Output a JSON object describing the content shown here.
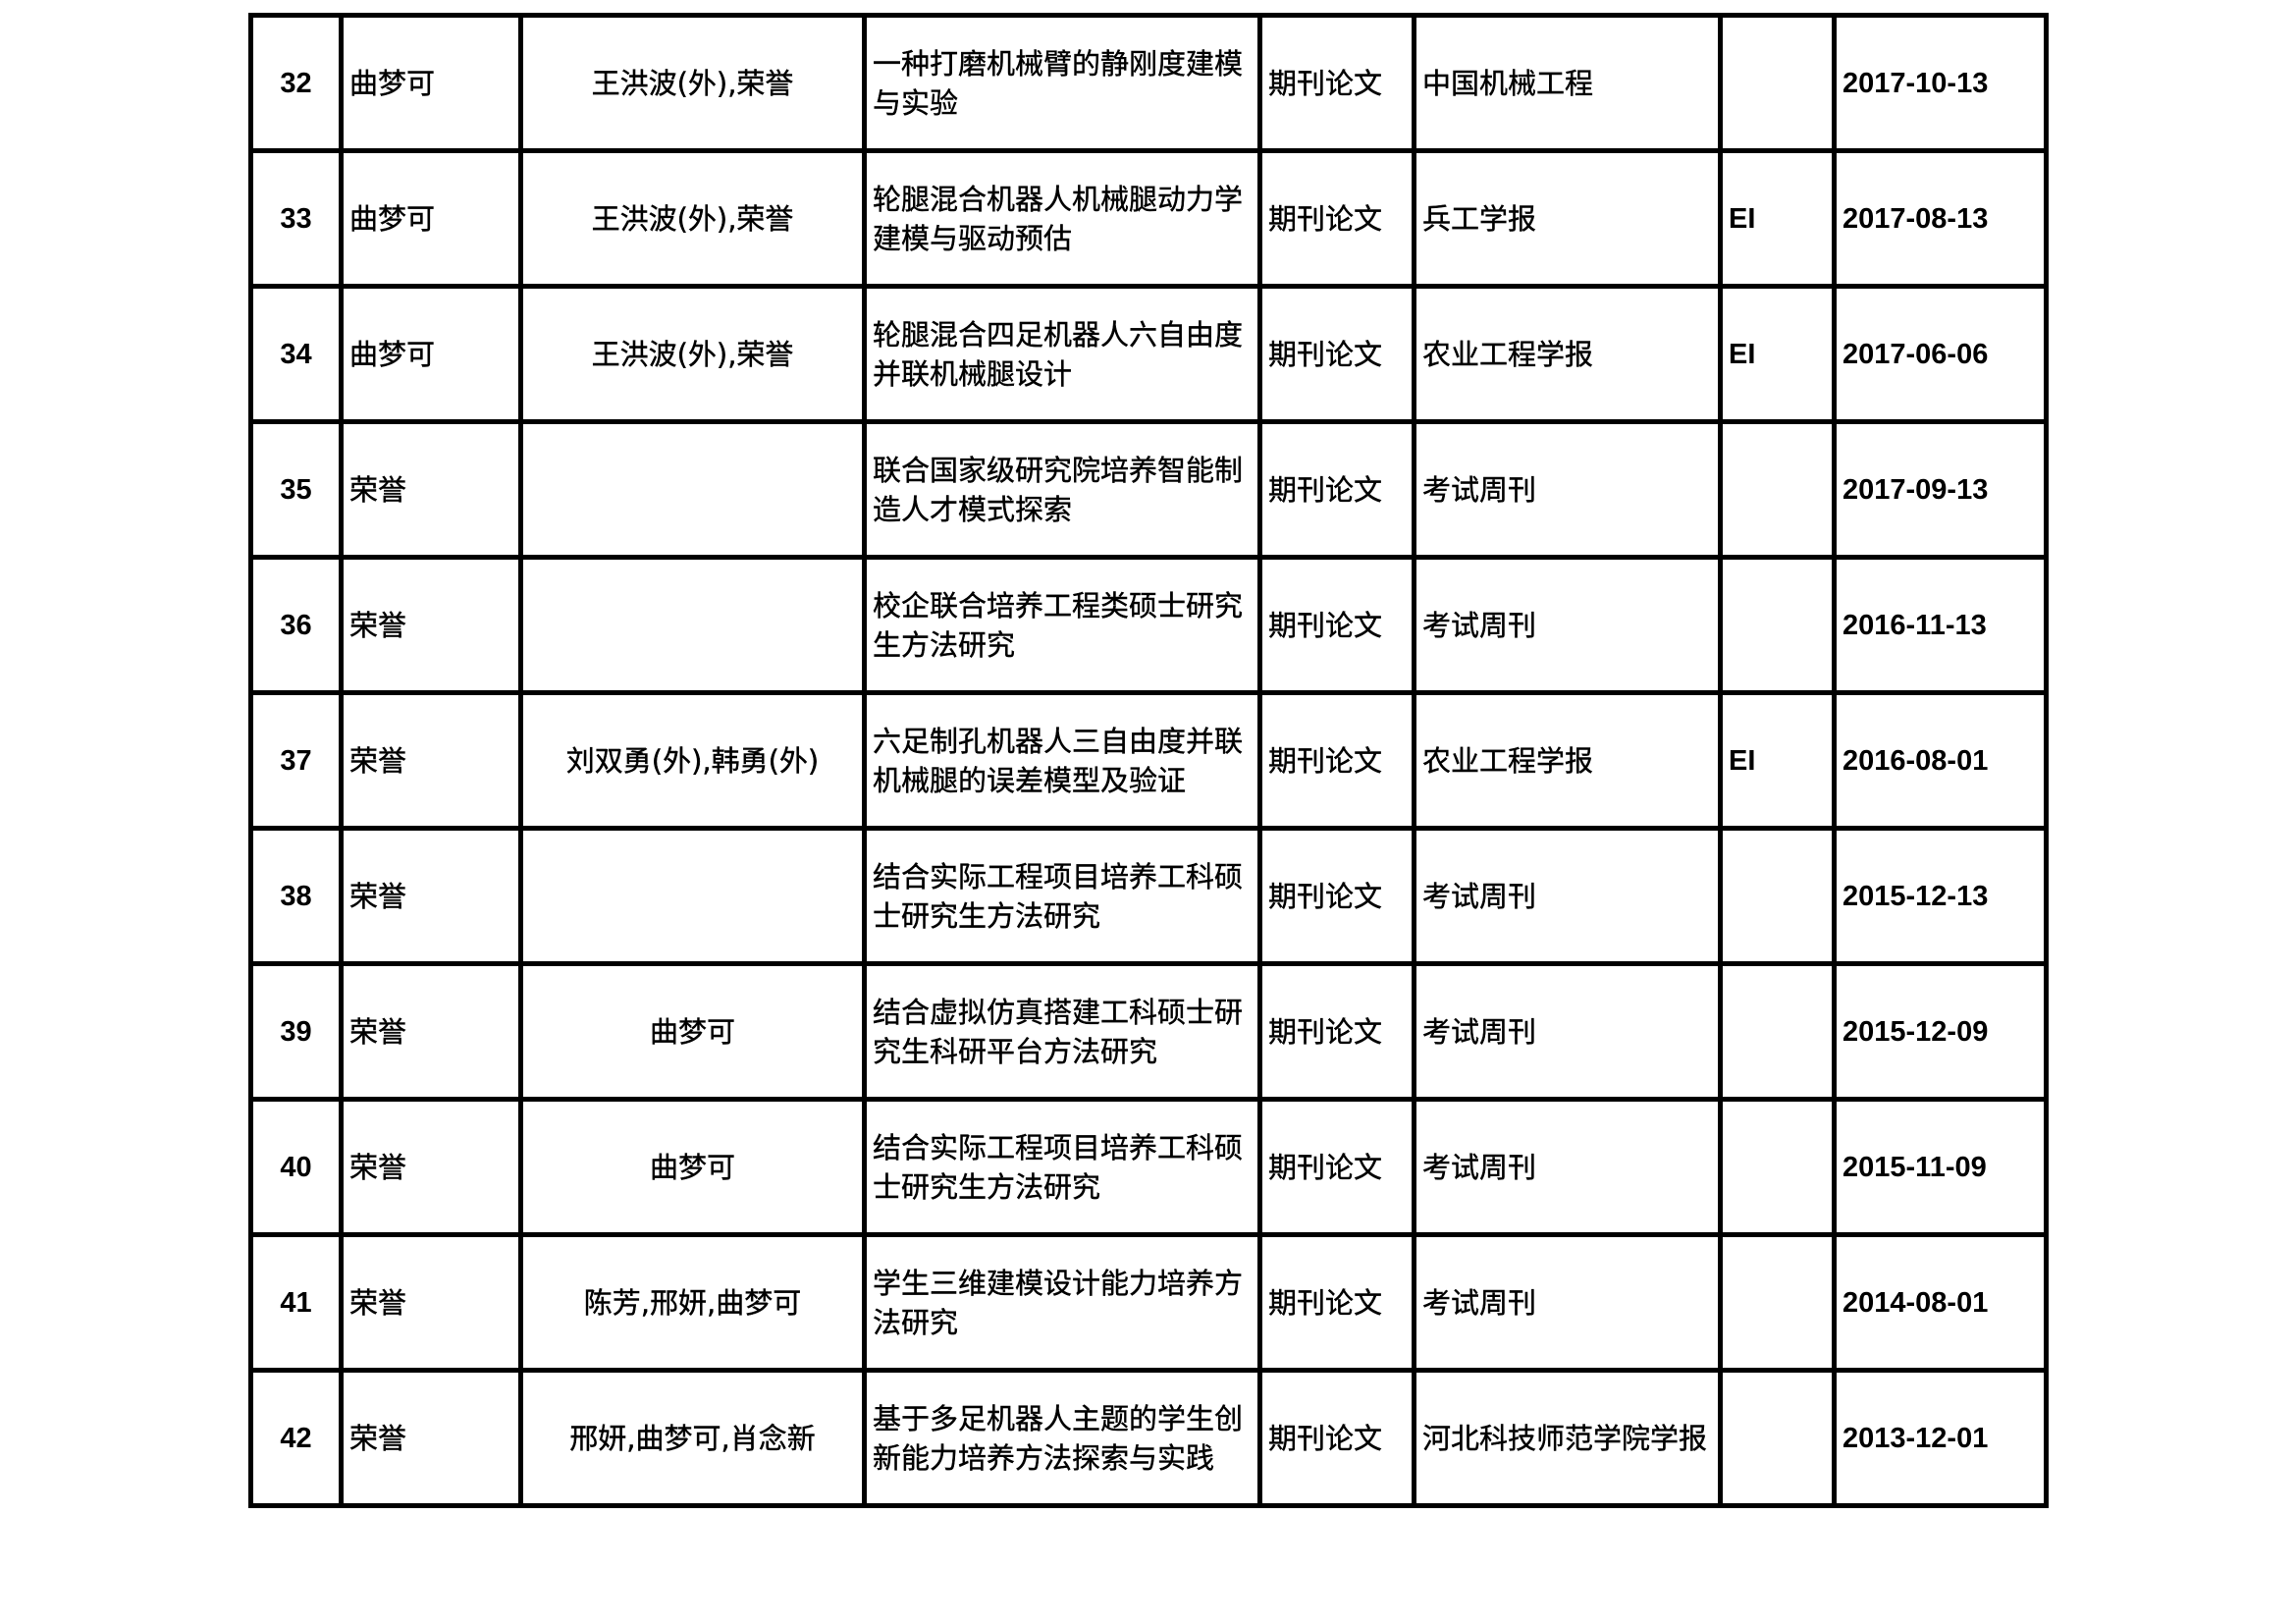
{
  "rows": [
    {
      "no": "32",
      "author": "曲梦可",
      "coauthors": "王洪波(外),荣誉",
      "title": "一种打磨机械臂的静刚度建模与实验",
      "type": "期刊论文",
      "journal": "中国机械工程",
      "index": "",
      "date": "2017-10-13"
    },
    {
      "no": "33",
      "author": "曲梦可",
      "coauthors": "王洪波(外),荣誉",
      "title": "轮腿混合机器人机械腿动力学建模与驱动预估",
      "type": "期刊论文",
      "journal": "兵工学报",
      "index": "EI",
      "date": "2017-08-13"
    },
    {
      "no": "34",
      "author": "曲梦可",
      "coauthors": "王洪波(外),荣誉",
      "title": "轮腿混合四足机器人六自由度并联机械腿设计",
      "type": "期刊论文",
      "journal": "农业工程学报",
      "index": "EI",
      "date": "2017-06-06"
    },
    {
      "no": "35",
      "author": "荣誉",
      "coauthors": "",
      "title": "联合国家级研究院培养智能制造人才模式探索",
      "type": "期刊论文",
      "journal": "考试周刊",
      "index": "",
      "date": "2017-09-13"
    },
    {
      "no": "36",
      "author": "荣誉",
      "coauthors": "",
      "title": "校企联合培养工程类硕士研究生方法研究",
      "type": "期刊论文",
      "journal": "考试周刊",
      "index": "",
      "date": "2016-11-13"
    },
    {
      "no": "37",
      "author": "荣誉",
      "coauthors": "刘双勇(外),韩勇(外)",
      "title": "六足制孔机器人三自由度并联机械腿的误差模型及验证",
      "type": "期刊论文",
      "journal": "农业工程学报",
      "index": "EI",
      "date": "2016-08-01"
    },
    {
      "no": "38",
      "author": "荣誉",
      "coauthors": "",
      "title": "结合实际工程项目培养工科硕士研究生方法研究",
      "type": "期刊论文",
      "journal": "考试周刊",
      "index": "",
      "date": "2015-12-13"
    },
    {
      "no": "39",
      "author": "荣誉",
      "coauthors": "曲梦可",
      "title": "结合虚拟仿真搭建工科硕士研究生科研平台方法研究",
      "type": "期刊论文",
      "journal": "考试周刊",
      "index": "",
      "date": "2015-12-09"
    },
    {
      "no": "40",
      "author": "荣誉",
      "coauthors": "曲梦可",
      "title": "结合实际工程项目培养工科硕士研究生方法研究",
      "type": "期刊论文",
      "journal": "考试周刊",
      "index": "",
      "date": "2015-11-09"
    },
    {
      "no": "41",
      "author": "荣誉",
      "coauthors": "陈芳,邢妍,曲梦可",
      "title": "学生三维建模设计能力培养方法研究",
      "type": "期刊论文",
      "journal": "考试周刊",
      "index": "",
      "date": "2014-08-01"
    },
    {
      "no": "42",
      "author": "荣誉",
      "coauthors": "邢妍,曲梦可,肖念新",
      "title": "基于多足机器人主题的学生创新能力培养方法探索与实践",
      "type": "期刊论文",
      "journal": "河北科技师范学院学报",
      "index": "",
      "date": "2013-12-01"
    }
  ]
}
